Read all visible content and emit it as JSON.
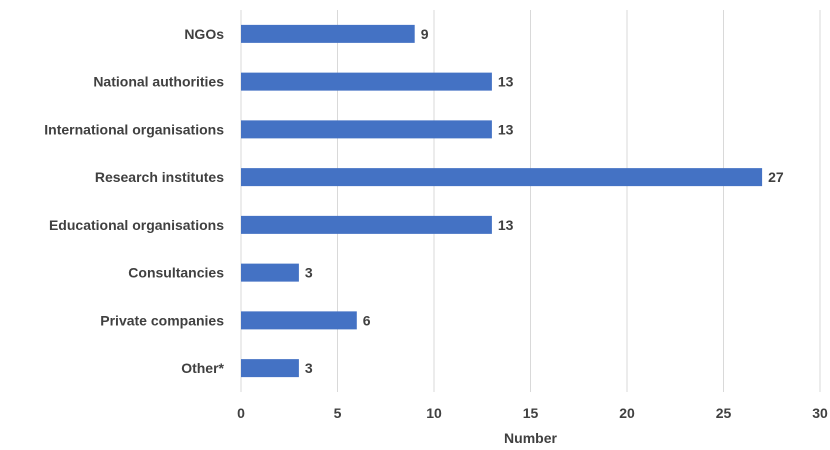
{
  "chart_data": {
    "type": "bar",
    "orientation": "horizontal",
    "categories": [
      "NGOs",
      "National authorities",
      "International organisations",
      "Research institutes",
      "Educational organisations",
      "Consultancies",
      "Private companies",
      "Other*"
    ],
    "values": [
      9,
      13,
      13,
      27,
      13,
      3,
      6,
      3
    ],
    "title": "",
    "xlabel": "Number",
    "ylabel": "",
    "xlim": [
      0,
      30
    ],
    "xticks": [
      "0",
      "5",
      "10",
      "15",
      "20",
      "25",
      "30"
    ],
    "grid": true,
    "legend": "none",
    "data_labels": true,
    "colors": {
      "bar": "#4472C4",
      "grid": "#D9D9D9",
      "text": "#404040"
    }
  }
}
